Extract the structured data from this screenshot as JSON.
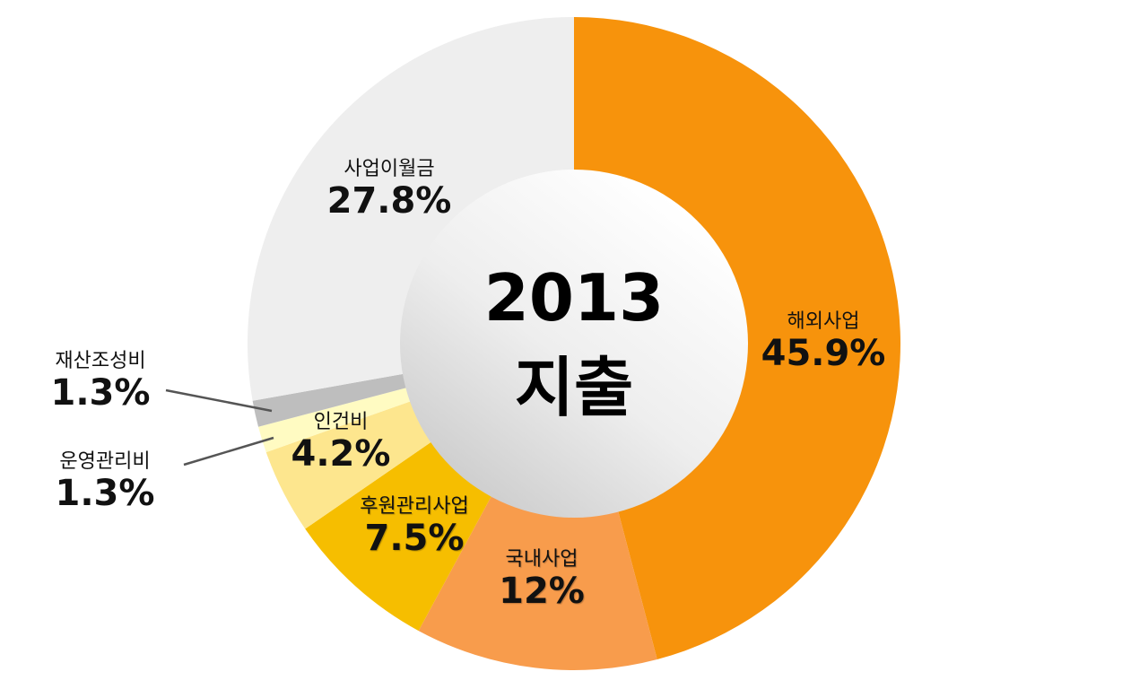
{
  "chart_data": {
    "type": "pie",
    "donut": true,
    "title": "2013",
    "subtitle": "지출",
    "slices": [
      {
        "label": "해외사업",
        "value": 45.9,
        "value_label": "45.9%",
        "color": "#F7930C"
      },
      {
        "label": "국내사업",
        "value": 12,
        "value_label": "12%",
        "color": "#F89C4C"
      },
      {
        "label": "후원관리사업",
        "value": 7.5,
        "value_label": "7.5%",
        "color": "#F6BE00"
      },
      {
        "label": "인건비",
        "value": 4.2,
        "value_label": "4.2%",
        "color": "#FDE68E"
      },
      {
        "label": "운영관리비",
        "value": 1.3,
        "value_label": "1.3%",
        "color": "#FFFBC2"
      },
      {
        "label": "재산조성비",
        "value": 1.3,
        "value_label": "1.3%",
        "color": "#BEBEBE"
      },
      {
        "label": "사업이월금",
        "value": 27.8,
        "value_label": "27.8%",
        "color": "#EEEEEE"
      }
    ],
    "start": "top",
    "direction": "clockwise"
  }
}
